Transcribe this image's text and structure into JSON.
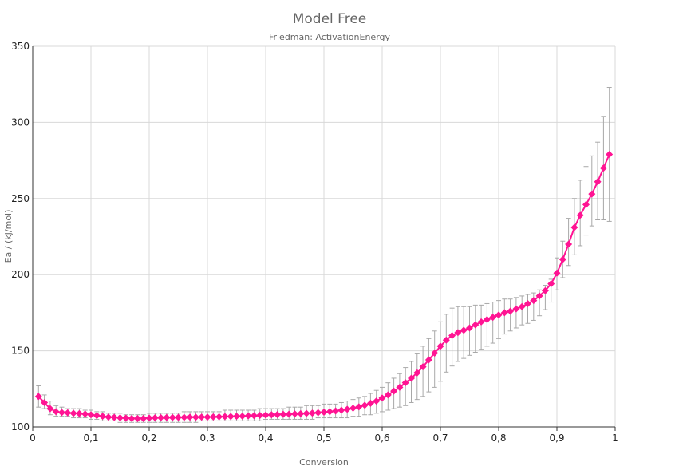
{
  "chart_data": {
    "type": "line",
    "title": "Model Free",
    "subtitle": "Friedman: ActivationEnergy",
    "xlabel": "Conversion",
    "ylabel": "Ea / (kJ/mol)",
    "xlim": [
      0,
      1
    ],
    "ylim": [
      100,
      350
    ],
    "x_ticks": [
      0,
      0.1,
      0.2,
      0.3,
      0.4,
      0.5,
      0.6,
      0.7,
      0.8,
      0.9,
      1
    ],
    "x_tick_labels": [
      "0",
      "0,1",
      "0,2",
      "0,3",
      "0,4",
      "0,5",
      "0,6",
      "0,7",
      "0,8",
      "0,9",
      "1"
    ],
    "y_ticks": [
      100,
      150,
      200,
      250,
      300,
      350
    ],
    "y_tick_labels": [
      "100",
      "150",
      "200",
      "250",
      "300",
      "350"
    ],
    "grid": true,
    "legend": "none",
    "colors": {
      "series": "#ff1493",
      "error_bar": "#a8a8a8",
      "grid": "#d8d8d8"
    },
    "series": [
      {
        "x": [
          0.01,
          0.02,
          0.03,
          0.04,
          0.05,
          0.06,
          0.07,
          0.08,
          0.09,
          0.1,
          0.11,
          0.12,
          0.13,
          0.14,
          0.15,
          0.16,
          0.17,
          0.18,
          0.19,
          0.2,
          0.21,
          0.22,
          0.23,
          0.24,
          0.25,
          0.26,
          0.27,
          0.28,
          0.29,
          0.3,
          0.31,
          0.32,
          0.33,
          0.34,
          0.35,
          0.36,
          0.37,
          0.38,
          0.39,
          0.4,
          0.41,
          0.42,
          0.43,
          0.44,
          0.45,
          0.46,
          0.47,
          0.48,
          0.49,
          0.5,
          0.51,
          0.52,
          0.53,
          0.54,
          0.55,
          0.56,
          0.57,
          0.58,
          0.59,
          0.6,
          0.61,
          0.62,
          0.63,
          0.64,
          0.65,
          0.66,
          0.67,
          0.68,
          0.69,
          0.7,
          0.71,
          0.72,
          0.73,
          0.74,
          0.75,
          0.76,
          0.77,
          0.78,
          0.79,
          0.8,
          0.81,
          0.82,
          0.83,
          0.84,
          0.85,
          0.86,
          0.87,
          0.88,
          0.89,
          0.9,
          0.91,
          0.92,
          0.93,
          0.94,
          0.95,
          0.96,
          0.97,
          0.98,
          0.99
        ],
        "y": [
          120,
          116,
          112,
          110,
          109.5,
          109.3,
          109,
          108.8,
          108.5,
          108,
          107.5,
          107,
          106.5,
          106.3,
          106,
          105.8,
          105.6,
          105.5,
          105.6,
          105.8,
          106,
          106.1,
          106.2,
          106.2,
          106.3,
          106.3,
          106.4,
          106.4,
          106.5,
          106.5,
          106.6,
          106.7,
          106.8,
          106.9,
          107,
          107.1,
          107.3,
          107.4,
          107.6,
          107.8,
          108,
          108.1,
          108.3,
          108.4,
          108.6,
          108.7,
          108.9,
          109.1,
          109.4,
          109.7,
          110,
          110.5,
          111,
          111.6,
          112.3,
          113.2,
          114.2,
          115.5,
          117,
          119,
          121,
          123.5,
          126,
          129,
          132,
          135.5,
          139.5,
          144,
          148.5,
          153,
          157,
          160,
          162,
          163.5,
          165,
          167,
          169,
          170.5,
          172,
          173.5,
          175,
          176,
          177.5,
          179,
          181,
          183,
          186,
          189.5,
          194,
          201,
          210,
          220,
          231,
          239,
          246,
          253,
          261,
          270,
          279
        ],
        "err_low": [
          113,
          112,
          108,
          107,
          107,
          107,
          106,
          106,
          106,
          105,
          105,
          104,
          104,
          104,
          103,
          103,
          103,
          103,
          103,
          103,
          103,
          103,
          103,
          103,
          103,
          103,
          103,
          103,
          104,
          104,
          104,
          104,
          104,
          104,
          104,
          104,
          104,
          104,
          104,
          105,
          105,
          105,
          105,
          105,
          105,
          105,
          105,
          105,
          106,
          106,
          106,
          106,
          106,
          106,
          107,
          107,
          108,
          108,
          109,
          110,
          111,
          112,
          113,
          114,
          116,
          118,
          120,
          123,
          126,
          130,
          136,
          140,
          143,
          145,
          147,
          149,
          151,
          153,
          155,
          158,
          161,
          163,
          165,
          167,
          168,
          170,
          173,
          177,
          182,
          190,
          198,
          206,
          213,
          219,
          226,
          232,
          236,
          236,
          235
        ],
        "err_high": [
          127,
          121,
          117,
          114,
          113,
          112,
          112,
          112,
          111,
          111,
          110,
          110,
          109,
          109,
          109,
          108,
          108,
          108,
          108,
          109,
          109,
          109,
          109,
          109,
          109,
          110,
          110,
          110,
          110,
          110,
          110,
          110,
          111,
          111,
          111,
          111,
          111,
          111,
          112,
          112,
          112,
          112,
          112,
          113,
          113,
          113,
          114,
          114,
          114,
          115,
          115,
          115,
          116,
          117,
          118,
          119,
          120,
          122,
          124,
          126,
          129,
          132,
          135,
          139,
          143,
          148,
          153,
          158,
          163,
          169,
          174,
          178,
          179,
          179,
          179,
          180,
          180,
          181,
          182,
          183,
          184,
          184,
          185,
          186,
          187,
          188,
          190,
          193,
          197,
          211,
          222,
          237,
          250,
          262,
          271,
          278,
          287,
          304,
          323
        ]
      }
    ]
  }
}
